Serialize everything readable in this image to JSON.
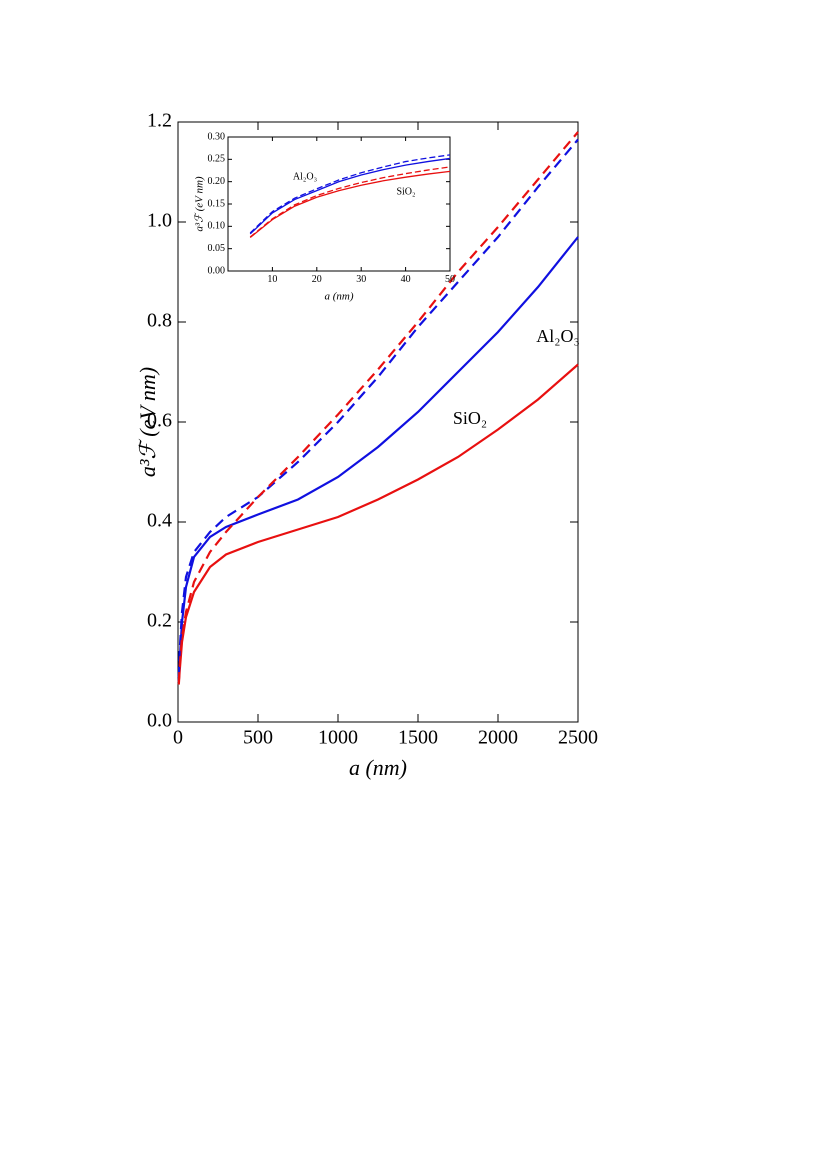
{
  "chart_data": [
    {
      "type": "line",
      "x_label": "a (nm)",
      "y_label": "a³ℱ (eV nm)",
      "xlim": [
        0,
        2500
      ],
      "ylim": [
        0,
        1.2
      ],
      "xticks": [
        0,
        500,
        1000,
        1500,
        2000,
        2500
      ],
      "yticks": [
        {
          "value": 0,
          "label": "0.0"
        },
        0.2,
        0.4,
        0.6,
        0.8,
        {
          "value": 1,
          "label": "1.0"
        },
        1.2
      ],
      "x": [
        5,
        10,
        25,
        50,
        100,
        200,
        300,
        500,
        750,
        1000,
        1250,
        1500,
        1750,
        2000,
        2250,
        2500
      ],
      "series": [
        {
          "color": "#1010e0",
          "dashed": false,
          "values": [
            0.08,
            0.12,
            0.2,
            0.27,
            0.33,
            0.37,
            0.39,
            0.415,
            0.445,
            0.49,
            0.55,
            0.62,
            0.7,
            0.78,
            0.87,
            0.97
          ]
        },
        {
          "color": "#e81010",
          "dashed": false,
          "values": [
            0.075,
            0.1,
            0.16,
            0.21,
            0.26,
            0.31,
            0.335,
            0.36,
            0.385,
            0.41,
            0.445,
            0.485,
            0.53,
            0.585,
            0.645,
            0.715
          ]
        },
        {
          "color": "#1010e0",
          "dashed": true,
          "values": [
            0.09,
            0.14,
            0.22,
            0.29,
            0.34,
            0.38,
            0.41,
            0.45,
            0.52,
            0.6,
            0.69,
            0.79,
            0.88,
            0.97,
            1.07,
            1.165
          ]
        },
        {
          "color": "#e81010",
          "dashed": true,
          "values": [
            0.08,
            0.11,
            0.17,
            0.22,
            0.28,
            0.34,
            0.38,
            0.45,
            0.53,
            0.615,
            0.705,
            0.8,
            0.9,
            0.99,
            1.085,
            1.18
          ]
        }
      ],
      "annotations": [
        "Al₂O₃",
        "SiO₂"
      ]
    },
    {
      "type": "line",
      "x_label": "a (nm)",
      "y_label": "a³ℱ (eV nm)",
      "xlim": [
        0,
        50
      ],
      "ylim": [
        0,
        0.3
      ],
      "xticks": [
        10,
        20,
        30,
        40,
        50
      ],
      "yticks": [
        {
          "value": 0,
          "label": "0.00"
        },
        {
          "value": 0.05,
          "label": "0.05"
        },
        {
          "value": 0.1,
          "label": "0.10"
        },
        {
          "value": 0.15,
          "label": "0.15"
        },
        {
          "value": 0.2,
          "label": "0.20"
        },
        {
          "value": 0.25,
          "label": "0.25"
        },
        {
          "value": 0.3,
          "label": "0.30"
        }
      ],
      "x": [
        5,
        10,
        15,
        20,
        25,
        30,
        35,
        40,
        45,
        50
      ],
      "series": [
        {
          "color": "#1010e0",
          "dashed": false,
          "values": [
            0.083,
            0.13,
            0.16,
            0.18,
            0.2,
            0.215,
            0.227,
            0.237,
            0.245,
            0.252
          ]
        },
        {
          "color": "#e81010",
          "dashed": false,
          "values": [
            0.075,
            0.115,
            0.145,
            0.165,
            0.18,
            0.192,
            0.202,
            0.21,
            0.217,
            0.223
          ]
        },
        {
          "color": "#1010e0",
          "dashed": true,
          "values": [
            0.085,
            0.133,
            0.163,
            0.184,
            0.204,
            0.22,
            0.233,
            0.245,
            0.253,
            0.26
          ]
        },
        {
          "color": "#e81010",
          "dashed": true,
          "values": [
            0.076,
            0.117,
            0.148,
            0.169,
            0.185,
            0.198,
            0.209,
            0.218,
            0.226,
            0.233
          ]
        }
      ],
      "annotations": [
        "Al₂O₃",
        "SiO₂"
      ]
    }
  ]
}
